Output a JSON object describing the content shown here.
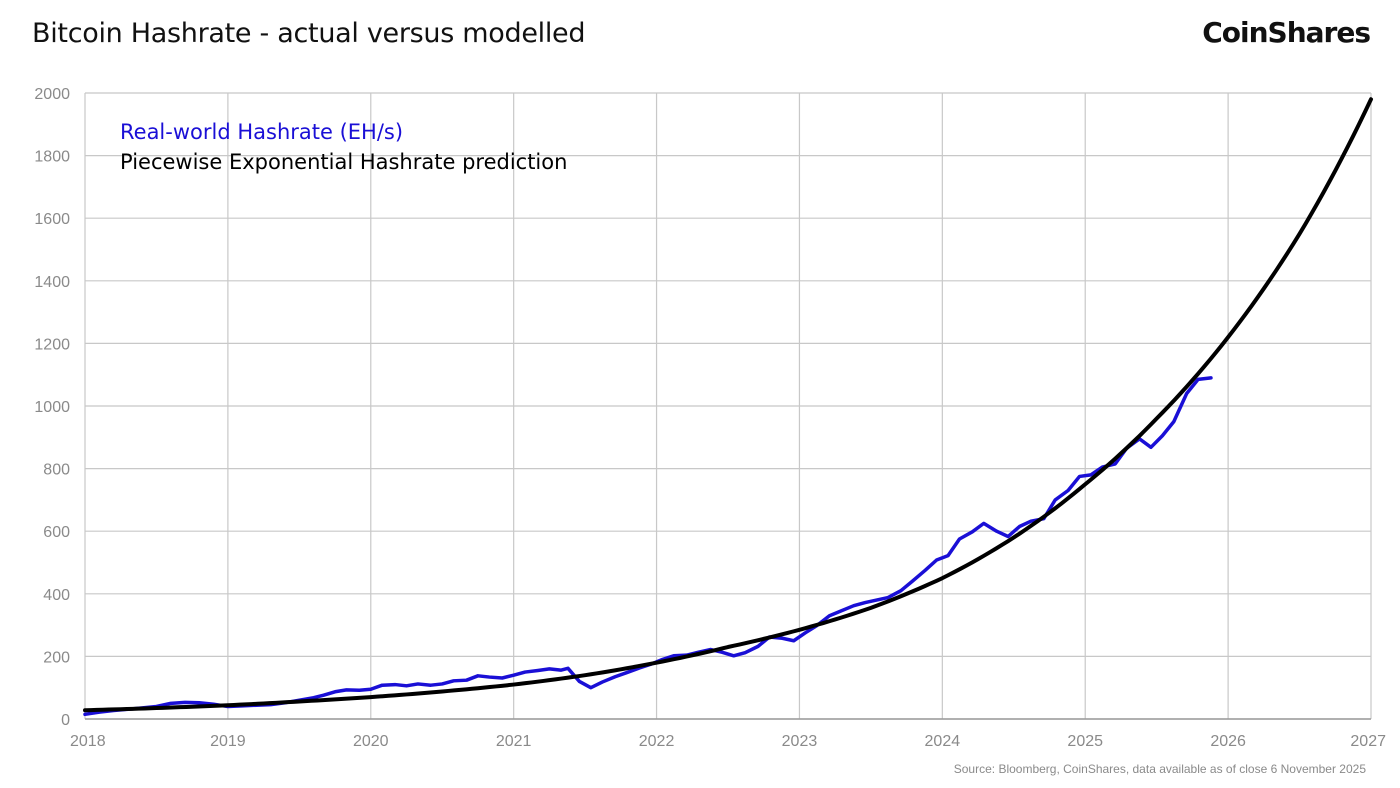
{
  "header": {
    "title": "Bitcoin Hashrate - actual versus modelled",
    "brand": "CoinShares"
  },
  "footer": {
    "source": "Source: Bloomberg, CoinShares, data available as of close 6 November 2025"
  },
  "colors": {
    "actual": "#1a0fd6",
    "model": "#000000",
    "grid": "#c8c8c8",
    "tick": "#8a8a8a"
  },
  "chart_data": {
    "type": "line",
    "title": "Bitcoin Hashrate - actual versus modelled",
    "xlim": [
      2018,
      2027
    ],
    "ylim": [
      0,
      2000
    ],
    "x_ticks": [
      "2018",
      "2019",
      "2020",
      "2021",
      "2022",
      "2023",
      "2024",
      "2025",
      "2026",
      "2027"
    ],
    "y_ticks": [
      "0",
      "200",
      "400",
      "600",
      "800",
      "1000",
      "1200",
      "1400",
      "1600",
      "1800",
      "2000"
    ],
    "grid": true,
    "legend_position": "top-left",
    "series": [
      {
        "name": "Real-world Hashrate (EH/s)",
        "x": [
          2018.0,
          2018.1,
          2018.2,
          2018.35,
          2018.5,
          2018.6,
          2018.7,
          2018.8,
          2018.9,
          2019.0,
          2019.1,
          2019.2,
          2019.3,
          2019.4,
          2019.5,
          2019.6,
          2019.67,
          2019.75,
          2019.83,
          2019.92,
          2020.0,
          2020.08,
          2020.17,
          2020.25,
          2020.33,
          2020.42,
          2020.5,
          2020.58,
          2020.67,
          2020.75,
          2020.83,
          2020.92,
          2021.0,
          2021.08,
          2021.17,
          2021.25,
          2021.33,
          2021.38,
          2021.46,
          2021.54,
          2021.62,
          2021.71,
          2021.79,
          2021.88,
          2021.96,
          2022.04,
          2022.12,
          2022.21,
          2022.29,
          2022.38,
          2022.46,
          2022.54,
          2022.62,
          2022.71,
          2022.79,
          2022.88,
          2022.96,
          2023.04,
          2023.12,
          2023.21,
          2023.29,
          2023.38,
          2023.46,
          2023.54,
          2023.62,
          2023.71,
          2023.79,
          2023.88,
          2023.96,
          2024.04,
          2024.12,
          2024.21,
          2024.29,
          2024.38,
          2024.46,
          2024.54,
          2024.62,
          2024.71,
          2024.79,
          2024.88,
          2024.96,
          2025.04,
          2025.12,
          2025.21,
          2025.29,
          2025.38,
          2025.46,
          2025.54,
          2025.62,
          2025.71,
          2025.79,
          2025.88
        ],
        "values": [
          15,
          22,
          27,
          33,
          40,
          50,
          53,
          52,
          47,
          40,
          42,
          44,
          46,
          52,
          60,
          68,
          76,
          87,
          93,
          92,
          95,
          108,
          110,
          106,
          112,
          108,
          112,
          122,
          124,
          138,
          134,
          131,
          140,
          150,
          155,
          160,
          156,
          162,
          120,
          100,
          118,
          135,
          148,
          163,
          175,
          190,
          202,
          204,
          213,
          222,
          213,
          202,
          212,
          232,
          262,
          258,
          250,
          275,
          298,
          330,
          345,
          362,
          372,
          380,
          388,
          410,
          440,
          475,
          508,
          522,
          575,
          598,
          625,
          600,
          583,
          615,
          632,
          640,
          700,
          730,
          775,
          780,
          805,
          815,
          865,
          895,
          868,
          905,
          950,
          1040,
          1085,
          1090
        ]
      },
      {
        "name": "Piecewise Exponential Hashrate prediction",
        "x": [
          2018.0,
          2018.5,
          2019.0,
          2019.5,
          2020.0,
          2020.5,
          2021.0,
          2021.5,
          2022.0,
          2022.5,
          2023.0,
          2023.5,
          2024.0,
          2024.5,
          2025.0,
          2025.5,
          2026.0,
          2026.5,
          2027.0
        ],
        "values": [
          28,
          35,
          44,
          56,
          70,
          88,
          110,
          140,
          180,
          230,
          285,
          355,
          450,
          580,
          750,
          960,
          1220,
          1550,
          1980
        ]
      }
    ]
  }
}
